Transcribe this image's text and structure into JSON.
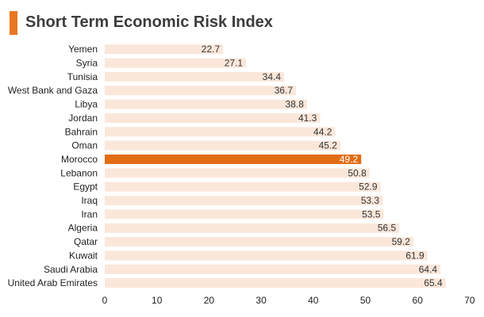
{
  "title": "Short Term Economic Risk Index",
  "colors": {
    "accent": "#e87722",
    "bar": "#fbe7da",
    "highlight": "#e26d14"
  },
  "chart_data": {
    "type": "bar",
    "orientation": "horizontal",
    "title": "Short Term Economic Risk Index",
    "xlabel": "",
    "ylabel": "",
    "xlim": [
      0,
      70
    ],
    "xticks": [
      0,
      10,
      20,
      30,
      40,
      50,
      60,
      70
    ],
    "highlight": "Morocco",
    "categories": [
      "Yemen",
      "Syria",
      "Tunisia",
      "West Bank and Gaza",
      "Libya",
      "Jordan",
      "Bahrain",
      "Oman",
      "Morocco",
      "Lebanon",
      "Egypt",
      "Iraq",
      "Iran",
      "Algeria",
      "Qatar",
      "Kuwait",
      "Saudi Arabia",
      "United Arab Emirates"
    ],
    "values": [
      22.7,
      27.1,
      34.4,
      36.7,
      38.8,
      41.3,
      44.2,
      45.2,
      49.2,
      50.8,
      52.9,
      53.3,
      53.5,
      56.5,
      59.2,
      61.9,
      64.4,
      65.4
    ]
  }
}
